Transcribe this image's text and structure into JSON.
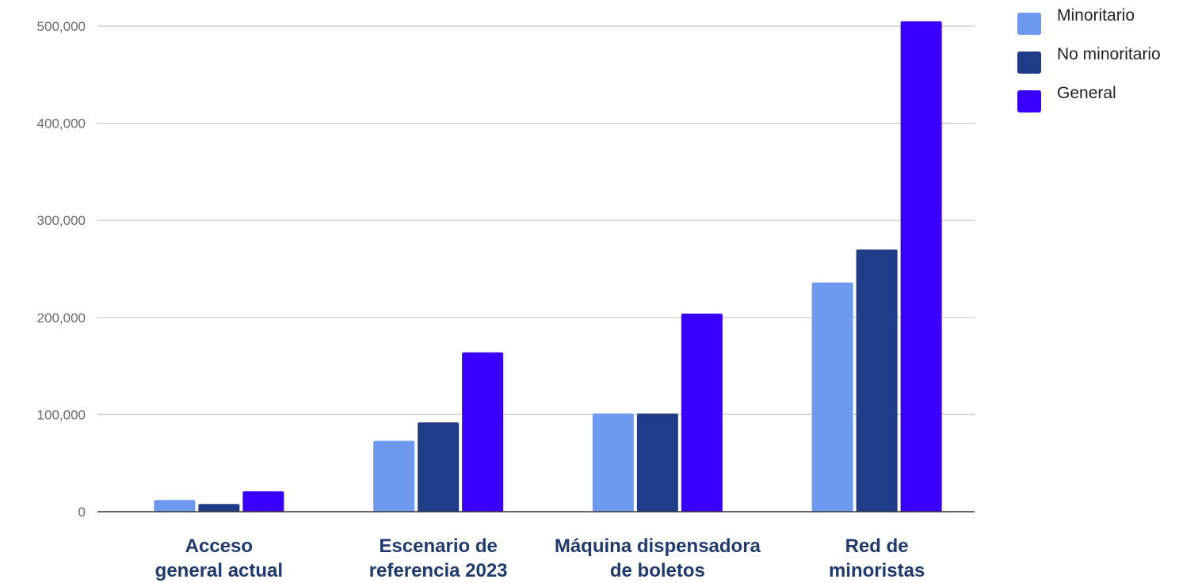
{
  "chart_data": {
    "type": "bar",
    "title": "",
    "xlabel": "",
    "ylabel": "",
    "ylim": [
      0,
      500000
    ],
    "yticks": [
      0,
      100000,
      200000,
      300000,
      400000,
      500000
    ],
    "ytick_labels": [
      "0",
      "100,000",
      "200,000",
      "300,000",
      "400,000",
      "500,000"
    ],
    "categories": [
      [
        "Acceso",
        "general actual"
      ],
      [
        "Escenario de",
        "referencia 2023"
      ],
      [
        "Máquina dispensadora",
        "de boletos"
      ],
      [
        "Red de",
        "minoristas"
      ]
    ],
    "series": [
      {
        "name": "Minoritario",
        "color": "#6d9af0",
        "values": [
          12000,
          73000,
          101000,
          236000
        ]
      },
      {
        "name": "No minoritario",
        "color": "#1f3c88",
        "values": [
          8000,
          92000,
          101000,
          270000
        ]
      },
      {
        "name": "General",
        "color": "#3a00ff",
        "values": [
          21000,
          164000,
          204000,
          505000
        ]
      }
    ],
    "grid": true,
    "legend_position": "top-right"
  }
}
